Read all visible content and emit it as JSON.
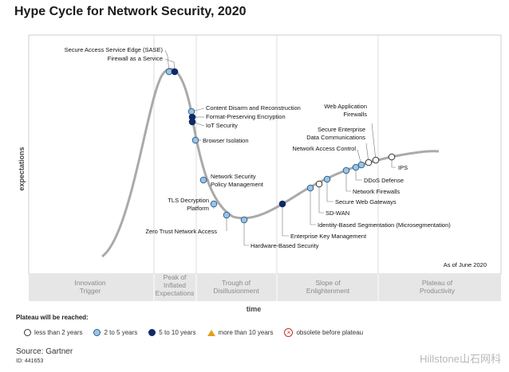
{
  "title": "Hype Cycle for Network Security, 2020",
  "y_axis_label": "expectations",
  "x_axis_label": "time",
  "as_of": "As of June 2020",
  "phases": [
    [
      "Innovation",
      "Trigger"
    ],
    [
      "Peak of",
      "Inflated",
      "Expectations"
    ],
    [
      "Trough of",
      "Disillusionment"
    ],
    [
      "Slope of",
      "Enlightenment"
    ],
    [
      "Plateau of",
      "Productivity"
    ]
  ],
  "legend": {
    "title": "Plateau will be reached:",
    "items": [
      {
        "label": "less than 2 years",
        "icon": "white-circle"
      },
      {
        "label": "2 to 5 years",
        "icon": "light-blue-circle"
      },
      {
        "label": "5 to 10 years",
        "icon": "dark-blue-circle"
      },
      {
        "label": "more than 10 years",
        "icon": "orange-triangle"
      },
      {
        "label": "obsolete before plateau",
        "icon": "red-x-circle"
      }
    ]
  },
  "colors": {
    "less_than_2": "#ffffff",
    "two_to_five": "#9cc3e4",
    "five_to_ten": "#0e2a66",
    "curve": "#aaaaaa",
    "phase_band": "#e6e6e6"
  },
  "source": "Source: Gartner",
  "doc_id": "ID: 441653",
  "watermark": "Hillstone山石网科",
  "technologies": [
    {
      "name": "Secure Access Service Edge (SASE)",
      "category": "5 to 10 years"
    },
    {
      "name": "Firewall as a Service",
      "category": "5 to 10 years"
    },
    {
      "name": "Content Disarm and Reconstruction",
      "category": "2 to 5 years"
    },
    {
      "name": "Format-Preserving Encryption",
      "category": "5 to 10 years"
    },
    {
      "name": "IoT Security",
      "category": "5 to 10 years"
    },
    {
      "name": "Browser Isolation",
      "category": "2 to 5 years"
    },
    {
      "name": "Network Security Policy Management",
      "category": "2 to 5 years"
    },
    {
      "name": "TLS Decryption Platform",
      "category": "2 to 5 years"
    },
    {
      "name": "Zero Trust Network Access",
      "category": "2 to 5 years"
    },
    {
      "name": "Hardware-Based Security",
      "category": "2 to 5 years"
    },
    {
      "name": "Enterprise Key Management",
      "category": "5 to 10 years"
    },
    {
      "name": "Identity-Based Segmentation (Microsegmentation)",
      "category": "2 to 5 years"
    },
    {
      "name": "SD-WAN",
      "category": "less than 2 years"
    },
    {
      "name": "Secure Web Gateways",
      "category": "2 to 5 years"
    },
    {
      "name": "Network Firewalls",
      "category": "2 to 5 years"
    },
    {
      "name": "DDoS Defense",
      "category": "2 to 5 years"
    },
    {
      "name": "Network Access Control",
      "category": "2 to 5 years"
    },
    {
      "name": "Secure Enterprise Data Communications",
      "category": "less than 2 years"
    },
    {
      "name": "Web Application Firewalls",
      "category": "less than 2 years"
    },
    {
      "name": "IPS",
      "category": "less than 2 years"
    }
  ]
}
